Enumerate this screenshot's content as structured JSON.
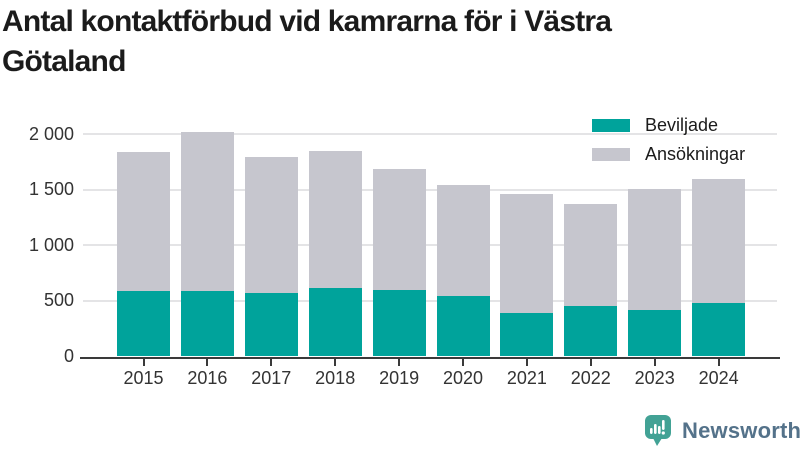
{
  "title": "Antal kontaktförbud vid kamrarna för i Västra Götaland",
  "chart_data": {
    "type": "bar",
    "stacked": true,
    "title": "Antal kontaktförbud vid kamrarna för i Västra Götaland",
    "categories": [
      "2015",
      "2016",
      "2017",
      "2018",
      "2019",
      "2020",
      "2021",
      "2022",
      "2023",
      "2024"
    ],
    "series": [
      {
        "name": "Beviljade",
        "color": "#00a39b",
        "values": [
          585,
          590,
          575,
          620,
          600,
          540,
          395,
          455,
          420,
          480
        ]
      },
      {
        "name": "Ansökningar",
        "color": "#c6c6ce",
        "values": [
          1840,
          2020,
          1790,
          1850,
          1690,
          1540,
          1465,
          1375,
          1510,
          1600
        ]
      }
    ],
    "series_note": "Ansökningar values are totals; gray segment drawn from Beviljade top to total",
    "xlabel": "",
    "ylabel": "",
    "ylim": [
      0,
      2000
    ],
    "yticks": {
      "values": [
        0,
        500,
        1000,
        1500,
        2000
      ],
      "labels": [
        "0",
        "500",
        "1 000",
        "1 500",
        "2 000"
      ]
    },
    "grid": true,
    "legend_position": "top-right"
  },
  "colors": {
    "accent_teal": "#00a39b",
    "bar_gray": "#c6c6ce",
    "axis": "#3a3a3a",
    "gridline": "#e4e4e6",
    "text": "#333333",
    "brand_text": "#54728a",
    "logo_teal": "#42a295"
  },
  "footer": {
    "brand": "Newsworthy"
  }
}
